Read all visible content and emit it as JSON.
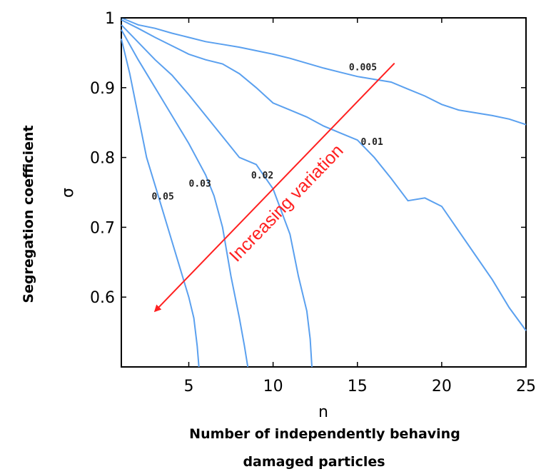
{
  "chart_data": {
    "type": "line",
    "title": "",
    "xlabel_symbol": "n",
    "xlabel_line1": "Number of independently behaving",
    "xlabel_line2": "damaged particles",
    "ylabel": "Segregation coefficient",
    "ylabel_symbol": "σ",
    "xlim": [
      1,
      25
    ],
    "ylim": [
      0.5,
      1.0
    ],
    "x_ticks": [
      5,
      10,
      15,
      20,
      25
    ],
    "x_tick_labels": [
      "5",
      "10",
      "15",
      "20",
      "25"
    ],
    "y_ticks": [
      0.6,
      0.7,
      0.8,
      0.9,
      1.0
    ],
    "y_tick_labels": [
      "0.6",
      "0.7",
      "0.8",
      "0.9",
      "1"
    ],
    "grid": false,
    "annotation": {
      "text": "Increasing variation",
      "arrow_from": [
        17.2,
        0.935
      ],
      "arrow_to": [
        3.0,
        0.58
      ],
      "color": "#ff2020"
    },
    "series": [
      {
        "name": "0.005",
        "label_at": [
          14.5,
          0.925
        ],
        "x": [
          1,
          2,
          3,
          4,
          5,
          6,
          7,
          8,
          9,
          10,
          11,
          12,
          13,
          14,
          15,
          16,
          17,
          18,
          19,
          20,
          21,
          22,
          23,
          24,
          25
        ],
        "y": [
          1.0,
          0.99,
          0.985,
          0.978,
          0.972,
          0.966,
          0.962,
          0.958,
          0.953,
          0.948,
          0.942,
          0.935,
          0.928,
          0.922,
          0.916,
          0.912,
          0.908,
          0.898,
          0.888,
          0.876,
          0.868,
          0.864,
          0.86,
          0.855,
          0.847
        ]
      },
      {
        "name": "0.01",
        "label_at": [
          15.2,
          0.818
        ],
        "x": [
          1,
          2,
          3,
          4,
          5,
          6,
          7,
          8,
          9,
          10,
          11,
          12,
          13,
          14,
          15,
          16,
          17,
          18,
          19,
          20,
          21,
          22,
          23,
          24,
          25
        ],
        "y": [
          0.997,
          0.985,
          0.972,
          0.96,
          0.948,
          0.94,
          0.934,
          0.92,
          0.9,
          0.878,
          0.868,
          0.858,
          0.845,
          0.835,
          0.825,
          0.8,
          0.77,
          0.738,
          0.742,
          0.73,
          0.695,
          0.66,
          0.625,
          0.585,
          0.552
        ]
      },
      {
        "name": "0.02",
        "label_at": [
          8.7,
          0.77
        ],
        "x": [
          1,
          2,
          3,
          4,
          5,
          6,
          7,
          8,
          9,
          10,
          11,
          11.5,
          12,
          12.2,
          12.3
        ],
        "y": [
          0.99,
          0.965,
          0.94,
          0.918,
          0.89,
          0.86,
          0.83,
          0.8,
          0.79,
          0.755,
          0.69,
          0.63,
          0.58,
          0.54,
          0.5
        ]
      },
      {
        "name": "0.03",
        "label_at": [
          5.0,
          0.758
        ],
        "x": [
          1,
          2,
          3,
          4,
          5,
          6,
          6.5,
          7,
          7.5,
          8,
          8.3,
          8.5
        ],
        "y": [
          0.983,
          0.94,
          0.9,
          0.86,
          0.82,
          0.775,
          0.745,
          0.7,
          0.63,
          0.57,
          0.53,
          0.5
        ]
      },
      {
        "name": "0.05",
        "label_at": [
          2.8,
          0.74
        ],
        "x": [
          1,
          1.5,
          2,
          2.5,
          3,
          3.5,
          4,
          4.5,
          5,
          5.3,
          5.5,
          5.6
        ],
        "y": [
          0.97,
          0.92,
          0.86,
          0.8,
          0.76,
          0.72,
          0.68,
          0.64,
          0.6,
          0.57,
          0.53,
          0.5
        ]
      }
    ]
  }
}
